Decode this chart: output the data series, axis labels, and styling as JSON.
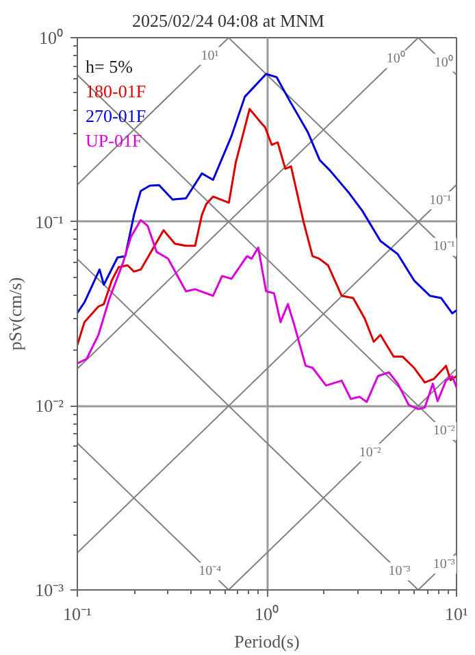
{
  "chart_data": {
    "type": "line",
    "title": "2025/02/24 04:08 at MNM",
    "xlabel": "Period(s)",
    "ylabel": "pSv(cm/s)",
    "log": "xy",
    "grid": true,
    "legend": "top left",
    "xlim": [
      0.1,
      10
    ],
    "ylim": [
      0.001,
      1
    ],
    "xticks": [
      {
        "value": 0.1,
        "label": "10⁻¹"
      },
      {
        "value": 1,
        "label": "10⁰"
      },
      {
        "value": 10,
        "label": "10¹"
      }
    ],
    "yticks": [
      {
        "value": 0.001,
        "label": "10⁻³"
      },
      {
        "value": 0.01,
        "label": "10⁻²"
      },
      {
        "value": 0.1,
        "label": "10⁻¹"
      },
      {
        "value": 1,
        "label": "10⁰"
      }
    ],
    "series": [
      {
        "color": "#808080",
        "x": [
          0.1,
          0.628
        ],
        "values": [
          0.00628,
          0.001
        ]
      },
      {
        "color": "#808080",
        "x": [
          0.1,
          6.28
        ],
        "values": [
          0.0628,
          0.001
        ]
      },
      {
        "color": "#808080",
        "x": [
          0.1,
          10
        ],
        "values": [
          0.628,
          0.00628
        ]
      },
      {
        "color": "#808080",
        "x": [
          0.628,
          10
        ],
        "values": [
          1,
          0.0628
        ]
      },
      {
        "color": "#808080",
        "x": [
          6.28,
          10
        ],
        "values": [
          1,
          0.628
        ]
      },
      {
        "color": "#808080",
        "x": [
          6.28,
          10
        ],
        "values": [
          0.001,
          0.00159
        ]
      },
      {
        "color": "#808080",
        "x": [
          0.628,
          10
        ],
        "values": [
          0.001,
          0.0159
        ]
      },
      {
        "color": "#808080",
        "x": [
          0.1,
          10
        ],
        "values": [
          0.00159,
          0.159
        ]
      },
      {
        "color": "#808080",
        "x": [
          0.1,
          6.28
        ],
        "values": [
          0.0159,
          1
        ]
      },
      {
        "color": "#808080",
        "x": [
          0.1,
          0.628
        ],
        "values": [
          0.159,
          1
        ]
      },
      {
        "name": "180-01F",
        "color": "#dd0000",
        "x": [
          0.1,
          0.109,
          0.129,
          0.138,
          0.152,
          0.165,
          0.184,
          0.199,
          0.216,
          0.285,
          0.327,
          0.374,
          0.418,
          0.454,
          0.479,
          0.52,
          0.63,
          0.685,
          0.81,
          0.924,
          0.978,
          1.06,
          1.14,
          1.25,
          1.34,
          1.56,
          1.74,
          1.89,
          2.1,
          2.48,
          2.85,
          3.27,
          3.66,
          3.97,
          4.66,
          5.2,
          5.97,
          6.8,
          7.6,
          8.8,
          9.3,
          10
        ],
        "values": [
          0.0214,
          0.0285,
          0.0346,
          0.0357,
          0.048,
          0.0566,
          0.058,
          0.0536,
          0.055,
          0.09,
          0.076,
          0.074,
          0.074,
          0.109,
          0.125,
          0.137,
          0.127,
          0.21,
          0.41,
          0.348,
          0.326,
          0.262,
          0.27,
          0.194,
          0.2,
          0.1,
          0.065,
          0.063,
          0.058,
          0.0396,
          0.0385,
          0.03,
          0.0223,
          0.0243,
          0.0185,
          0.0185,
          0.0161,
          0.0134,
          0.014,
          0.0165,
          0.0138,
          0.0145
        ]
      },
      {
        "name": "270-01F",
        "color": "#0000dd",
        "x": [
          0.1,
          0.109,
          0.131,
          0.138,
          0.163,
          0.179,
          0.199,
          0.216,
          0.241,
          0.27,
          0.318,
          0.374,
          0.454,
          0.52,
          0.65,
          0.765,
          0.99,
          1.125,
          1.32,
          1.64,
          1.9,
          2.16,
          2.7,
          3.18,
          3.97,
          4.9,
          5.97,
          7.24,
          8.3,
          9.5,
          10
        ],
        "values": [
          0.032,
          0.0365,
          0.055,
          0.0455,
          0.064,
          0.065,
          0.109,
          0.147,
          0.157,
          0.158,
          0.132,
          0.134,
          0.183,
          0.169,
          0.292,
          0.478,
          0.635,
          0.61,
          0.453,
          0.308,
          0.216,
          0.189,
          0.144,
          0.115,
          0.0786,
          0.0667,
          0.048,
          0.0396,
          0.0385,
          0.0318,
          0.033
        ]
      },
      {
        "name": "UP-01F",
        "color": "#dd00dd",
        "x": [
          0.1,
          0.112,
          0.129,
          0.148,
          0.174,
          0.192,
          0.216,
          0.235,
          0.262,
          0.301,
          0.374,
          0.418,
          0.52,
          0.58,
          0.65,
          0.785,
          0.83,
          0.9,
          0.99,
          1.09,
          1.18,
          1.29,
          1.39,
          1.6,
          1.74,
          2.05,
          2.48,
          2.77,
          3.08,
          3.36,
          3.85,
          4.4,
          4.9,
          5.6,
          6.3,
          6.8,
          7.5,
          7.95,
          8.8,
          9.5,
          10
        ],
        "values": [
          0.017,
          0.018,
          0.0242,
          0.0385,
          0.0597,
          0.083,
          0.102,
          0.095,
          0.0686,
          0.063,
          0.0419,
          0.043,
          0.0396,
          0.0507,
          0.049,
          0.065,
          0.063,
          0.0724,
          0.0419,
          0.0409,
          0.0285,
          0.0357,
          0.0278,
          0.0165,
          0.0161,
          0.0129,
          0.0137,
          0.0109,
          0.0112,
          0.0105,
          0.0145,
          0.0152,
          0.0132,
          0.0101,
          0.0096,
          0.0098,
          0.0132,
          0.0106,
          0.0137,
          0.0145,
          0.0126
        ]
      }
    ],
    "annotations": [
      "h= 5%",
      {
        "text": "10¹",
        "x": 0.5,
        "y": 0.796
      },
      {
        "text": "10⁰",
        "x": 4.8,
        "y": 0.764
      },
      {
        "text": "10⁰",
        "x": 8.6,
        "y": 0.731
      },
      {
        "text": "10⁻¹",
        "x": 8.2,
        "y": 0.1305
      },
      {
        "text": "10⁻¹",
        "x": 8.6,
        "y": 0.0731
      },
      {
        "text": "10⁻²",
        "x": 3.5,
        "y": 0.00557
      },
      {
        "text": "10⁻²",
        "x": 8.6,
        "y": 0.0073
      },
      {
        "text": "10⁻³",
        "x": 8.6,
        "y": 0.00137
      },
      {
        "text": "10⁻³",
        "x": 5.0,
        "y": 0.00126
      },
      {
        "text": "10⁻⁴",
        "x": 0.5,
        "y": 0.00126
      }
    ]
  }
}
